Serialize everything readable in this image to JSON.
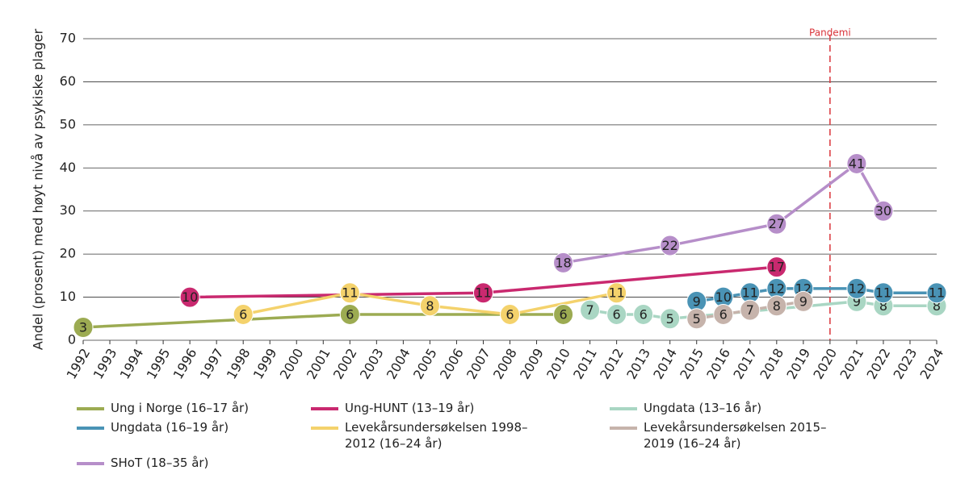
{
  "chart_data": {
    "type": "line",
    "y_label": "Andel (prosent) med høyt nivå av psykiske plager",
    "ylim": [
      0,
      70
    ],
    "yticks": [
      0,
      10,
      20,
      30,
      40,
      50,
      60,
      70
    ],
    "xlim": [
      1992,
      2024
    ],
    "xticks": [
      1992,
      1993,
      1994,
      1995,
      1996,
      1997,
      1998,
      1999,
      2000,
      2001,
      2002,
      2003,
      2004,
      2005,
      2006,
      2007,
      2008,
      2009,
      2010,
      2011,
      2012,
      2013,
      2014,
      2015,
      2016,
      2017,
      2018,
      2019,
      2020,
      2021,
      2022,
      2023,
      2024
    ],
    "grid": true,
    "annotation": {
      "x": 2020,
      "label": "Pandemi",
      "color": "#d9343a"
    },
    "series": [
      {
        "name": "Ung i Norge (16–17 år)",
        "color": "#9cab52",
        "x": [
          1992,
          2002,
          2010
        ],
        "values": [
          3,
          6,
          6
        ]
      },
      {
        "name": "Ung-HUNT (13–19 år)",
        "color": "#c9296f",
        "x": [
          1996,
          2007,
          2018
        ],
        "values": [
          10,
          11,
          17
        ]
      },
      {
        "name": "Ungdata (13–16 år)",
        "color": "#a9d6c3",
        "x": [
          2011,
          2012,
          2013,
          2014,
          2021,
          2022,
          2024
        ],
        "values": [
          7,
          6,
          6,
          5,
          9,
          8,
          8
        ]
      },
      {
        "name": "Ungdata (16–19 år)",
        "color": "#4a93b5",
        "x": [
          2015,
          2016,
          2017,
          2018,
          2019,
          2021,
          2022,
          2024
        ],
        "values": [
          9,
          10,
          11,
          12,
          12,
          12,
          11,
          11
        ]
      },
      {
        "name": "Levekårsundersøkelsen 1998–2012 (16–24 år)",
        "color": "#f4d26c",
        "x": [
          1998,
          2002,
          2005,
          2008,
          2012
        ],
        "values": [
          6,
          11,
          8,
          6,
          11
        ]
      },
      {
        "name": "Levekårsundersøkelsen 2015–2019 (16–24 år)",
        "color": "#c6b3ab",
        "x": [
          2015,
          2016,
          2017,
          2018,
          2019
        ],
        "values": [
          5,
          6,
          7,
          8,
          9
        ]
      },
      {
        "name": "SHoT (18–35 år)",
        "color": "#b68ec9",
        "x": [
          2010,
          2014,
          2018,
          2021,
          2022
        ],
        "values": [
          18,
          22,
          27,
          41,
          30
        ]
      }
    ]
  }
}
